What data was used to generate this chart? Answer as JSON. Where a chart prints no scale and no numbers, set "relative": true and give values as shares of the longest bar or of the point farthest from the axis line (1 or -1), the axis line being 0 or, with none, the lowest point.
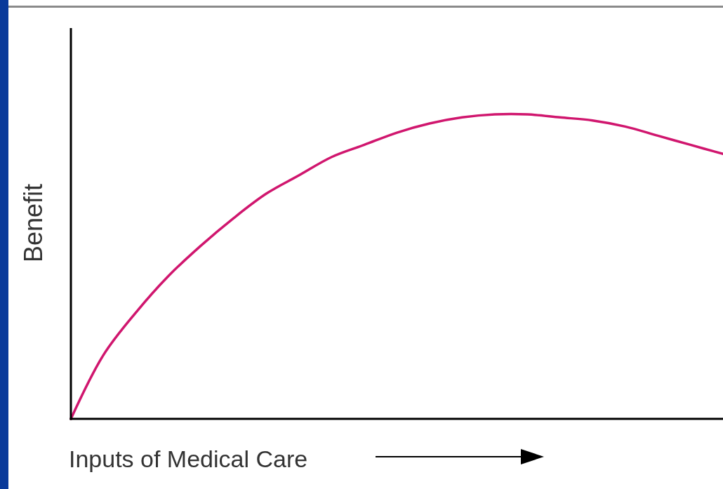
{
  "chart_data": {
    "type": "line",
    "relative": true,
    "xlabel": "Inputs of Medical Care",
    "ylabel": "Benefit",
    "categories": [
      null,
      null,
      null,
      null,
      null,
      null,
      null,
      null,
      null,
      null,
      null,
      null,
      null,
      null,
      null,
      null,
      null,
      null,
      null,
      null,
      null
    ],
    "series": [
      {
        "color": "#d0166e",
        "values": [
          0,
          0.21,
          0.35,
          0.47,
          0.57,
          0.66,
          0.74,
          0.8,
          0.86,
          0.9,
          0.94,
          0.97,
          0.99,
          1,
          1,
          0.99,
          0.98,
          0.96,
          0.93,
          0.9,
          0.87
        ]
      }
    ],
    "marker": "none",
    "line_style": "solid"
  }
}
